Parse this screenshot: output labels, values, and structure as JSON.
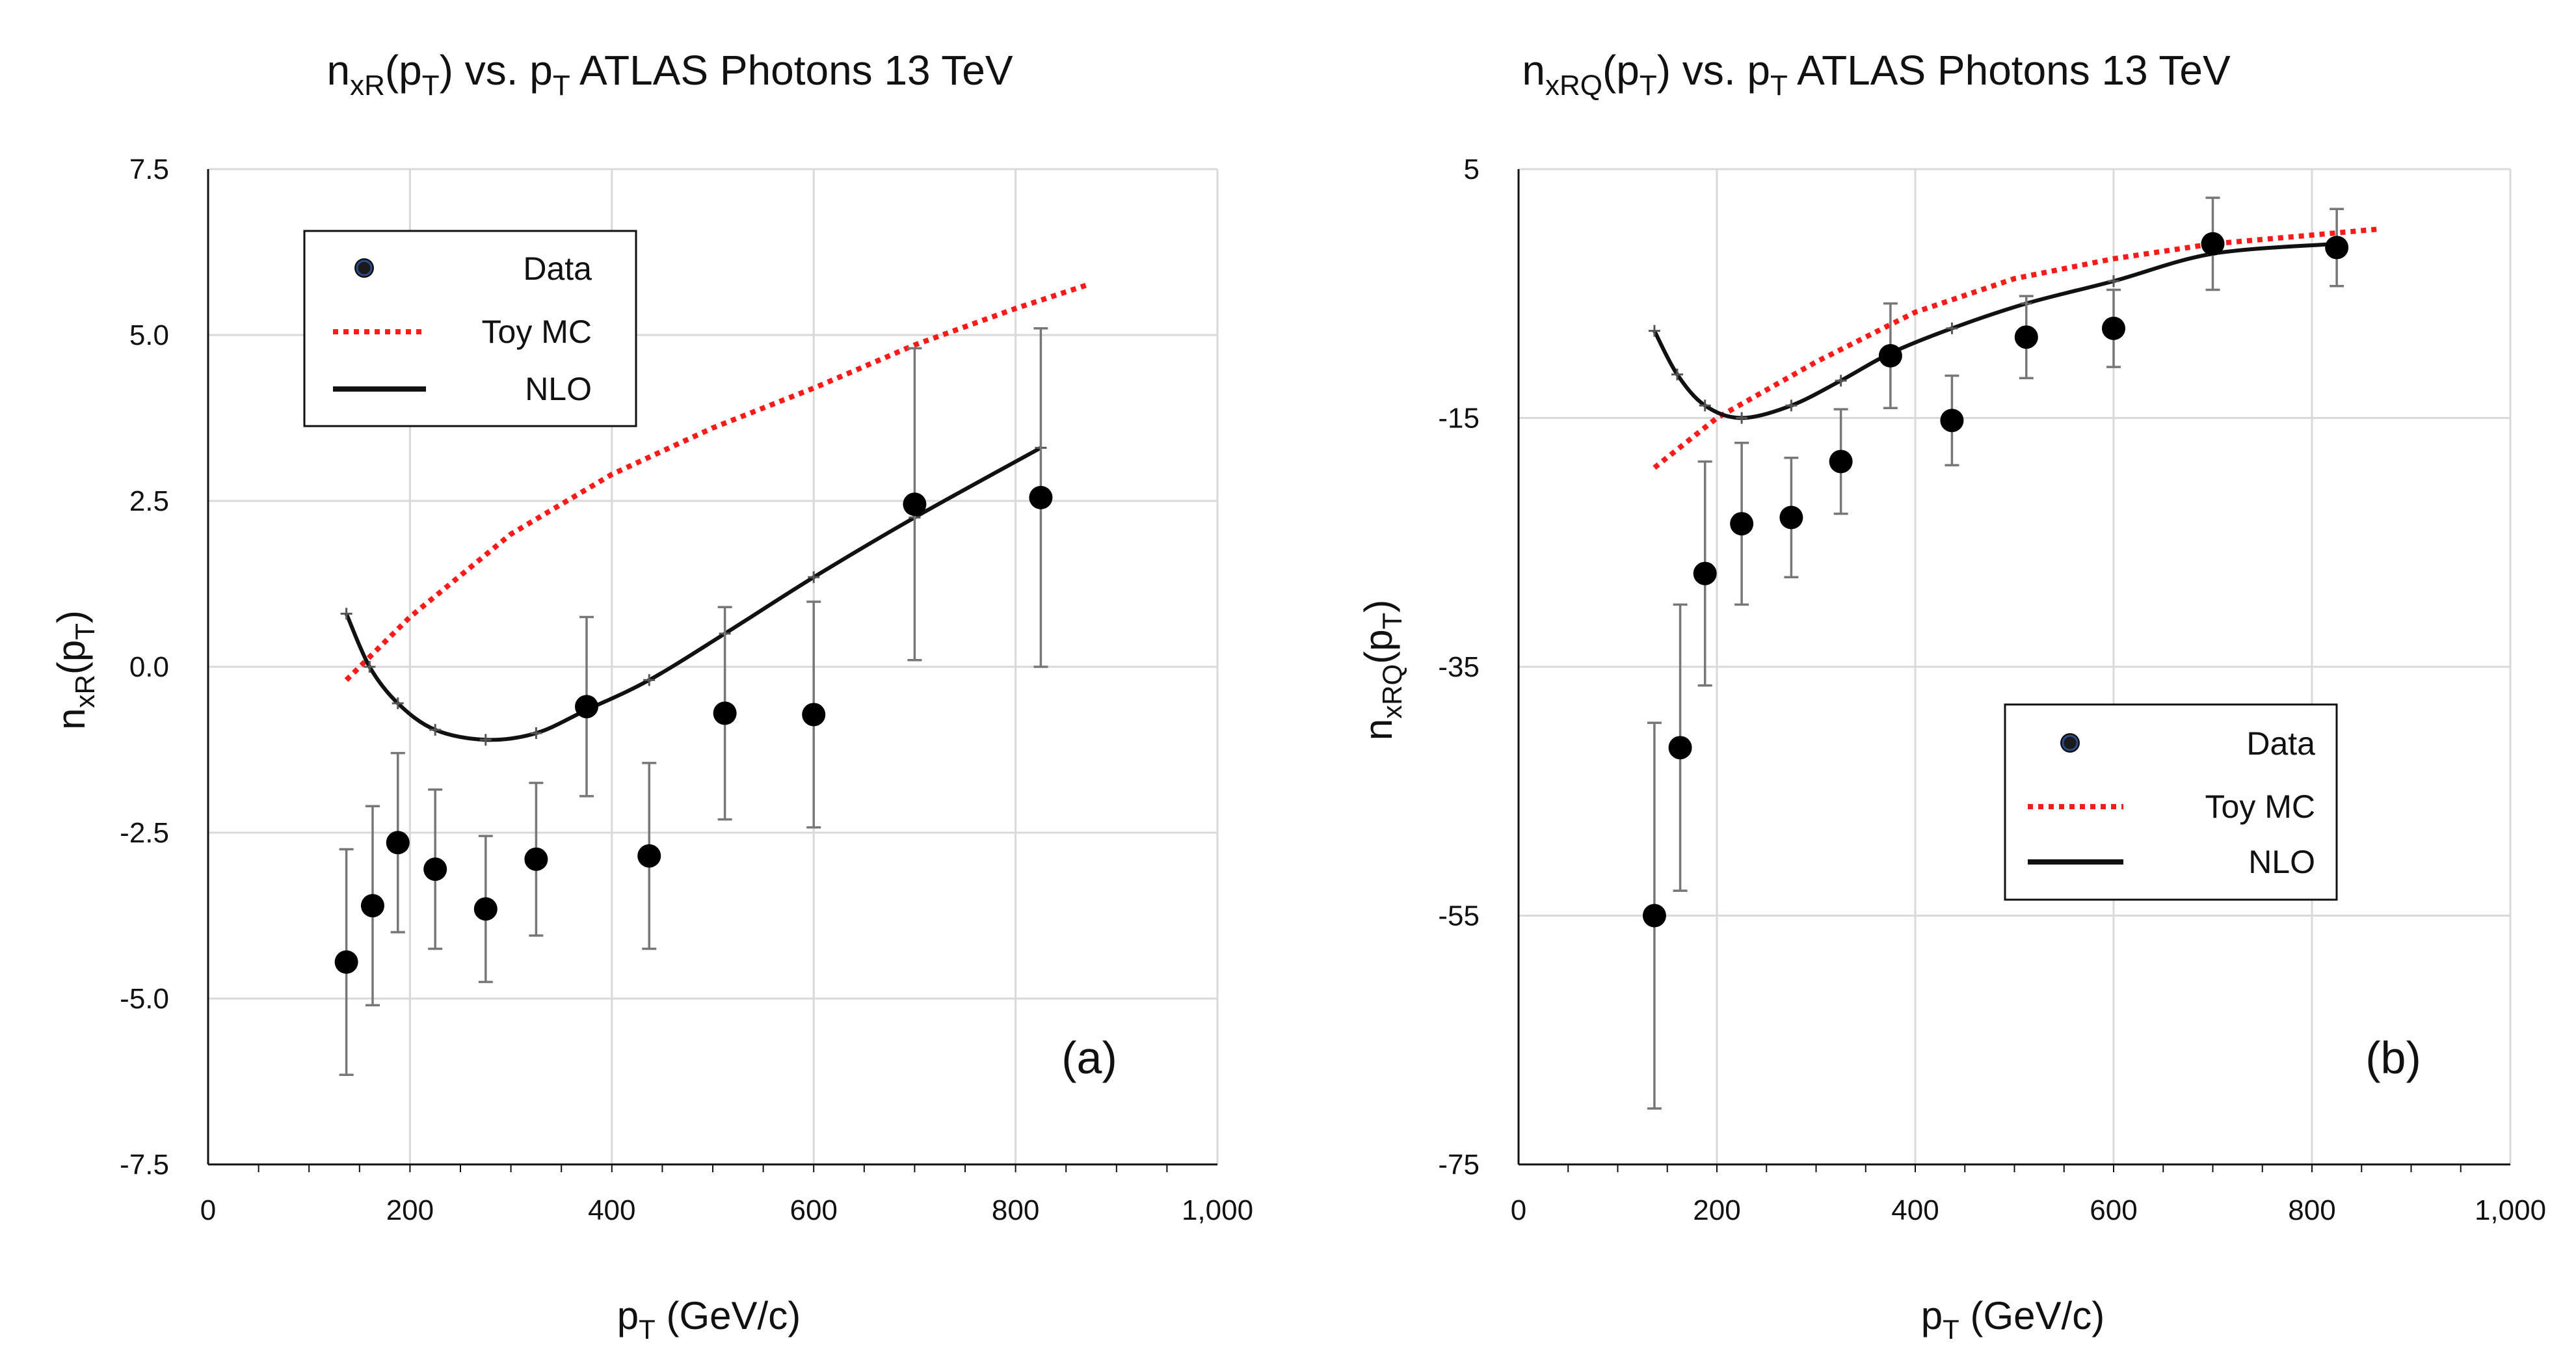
{
  "chart_data": [
    {
      "type": "scatter",
      "panel_label": "(a)",
      "title": {
        "base": "n",
        "sub1": "xR",
        "mid": "(p",
        "sub2": "T",
        "tail": ") vs. p",
        "sub3": "T",
        "end": " ATLAS Photons 13 TeV"
      },
      "xlabel": {
        "base": "p",
        "sub": "T",
        "tail": " (GeV/c)"
      },
      "ylabel": {
        "base": "n",
        "sub1": "xR",
        "mid": "(p",
        "sub2": "T",
        "tail": ")"
      },
      "xlim": [
        0,
        1000
      ],
      "ylim": [
        -7.5,
        7.5
      ],
      "xticks": [
        0,
        200,
        400,
        600,
        800,
        1000
      ],
      "xtick_labels": [
        "0",
        "200",
        "400",
        "600",
        "800",
        "1,000"
      ],
      "yticks": [
        7.5,
        5.0,
        2.5,
        0.0,
        -2.5,
        -5.0,
        -7.5
      ],
      "ytick_labels": [
        "7.5",
        "5.0",
        "2.5",
        "0.0",
        "-2.5",
        "-5.0",
        "-7.5"
      ],
      "legend": {
        "placement": "top-left",
        "entries": [
          "Data",
          "Toy MC",
          "NLO"
        ]
      },
      "series": [
        {
          "name": "Data",
          "kind": "points-with-errors",
          "x": [
            137,
            163,
            188,
            225,
            275,
            325,
            375,
            437,
            512,
            600,
            700,
            825
          ],
          "y": [
            -4.45,
            -3.6,
            -2.65,
            -3.05,
            -3.65,
            -2.9,
            -0.6,
            -2.85,
            -0.7,
            -0.72,
            2.45,
            2.55
          ],
          "err": [
            1.7,
            1.5,
            1.35,
            1.2,
            1.1,
            1.15,
            1.35,
            1.4,
            1.6,
            1.7,
            2.35,
            2.55
          ]
        },
        {
          "name": "Toy MC",
          "kind": "dotted-line",
          "color": "#ff1a1a",
          "x": [
            137,
            200,
            300,
            400,
            500,
            600,
            700,
            800,
            870
          ],
          "y": [
            -0.2,
            0.75,
            2.0,
            2.9,
            3.6,
            4.2,
            4.85,
            5.4,
            5.75
          ]
        },
        {
          "name": "NLO",
          "kind": "line",
          "color": "#111111",
          "x": [
            137,
            160,
            188,
            225,
            275,
            325,
            375,
            437,
            512,
            600,
            700,
            825
          ],
          "y": [
            0.8,
            0.0,
            -0.55,
            -0.95,
            -1.1,
            -1.0,
            -0.65,
            -0.2,
            0.5,
            1.35,
            2.25,
            3.3
          ]
        }
      ]
    },
    {
      "type": "scatter",
      "panel_label": "(b)",
      "title": {
        "base": "n",
        "sub1": "xRQ",
        "mid": "(p",
        "sub2": "T",
        "tail": ") vs. p",
        "sub3": "T",
        "end": " ATLAS Photons 13 TeV"
      },
      "xlabel": {
        "base": "p",
        "sub": "T",
        "tail": " (GeV/c)"
      },
      "ylabel": {
        "base": "n",
        "sub1": "xRQ",
        "mid": "(p",
        "sub2": "T",
        "tail": ")"
      },
      "xlim": [
        0,
        1000
      ],
      "ylim": [
        -75,
        5
      ],
      "xticks": [
        0,
        200,
        400,
        600,
        800,
        1000
      ],
      "xtick_labels": [
        "0",
        "200",
        "400",
        "600",
        "800",
        "1,000"
      ],
      "yticks": [
        5,
        -15,
        -35,
        -55,
        -75
      ],
      "ytick_labels": [
        "5",
        "-15",
        "-35",
        "-55",
        "-75"
      ],
      "legend": {
        "placement": "center-right",
        "entries": [
          "Data",
          "Toy MC",
          "NLO"
        ]
      },
      "series": [
        {
          "name": "Data",
          "kind": "points-with-errors",
          "x": [
            137,
            163,
            188,
            225,
            275,
            325,
            375,
            437,
            512,
            600,
            700,
            825
          ],
          "y": [
            -55.0,
            -41.5,
            -27.5,
            -23.5,
            -23.0,
            -18.5,
            -10.0,
            -15.2,
            -8.5,
            -7.8,
            -1.0,
            -1.3
          ],
          "err": [
            15.5,
            11.5,
            9.0,
            6.5,
            4.8,
            4.2,
            4.2,
            3.6,
            3.3,
            3.1,
            3.7,
            3.1
          ]
        },
        {
          "name": "Toy MC",
          "kind": "dotted-line",
          "color": "#ff1a1a",
          "x": [
            137,
            200,
            300,
            400,
            500,
            600,
            700,
            800,
            870
          ],
          "y": [
            -19.0,
            -15.0,
            -10.5,
            -6.5,
            -3.8,
            -2.2,
            -1.0,
            -0.3,
            0.2
          ]
        },
        {
          "name": "NLO",
          "kind": "line",
          "color": "#111111",
          "x": [
            137,
            160,
            188,
            225,
            275,
            325,
            375,
            437,
            512,
            600,
            700,
            825
          ],
          "y": [
            -8.0,
            -11.5,
            -14.0,
            -15.0,
            -14.0,
            -12.0,
            -9.8,
            -7.8,
            -5.8,
            -4.0,
            -1.8,
            -1.0
          ]
        }
      ]
    }
  ]
}
